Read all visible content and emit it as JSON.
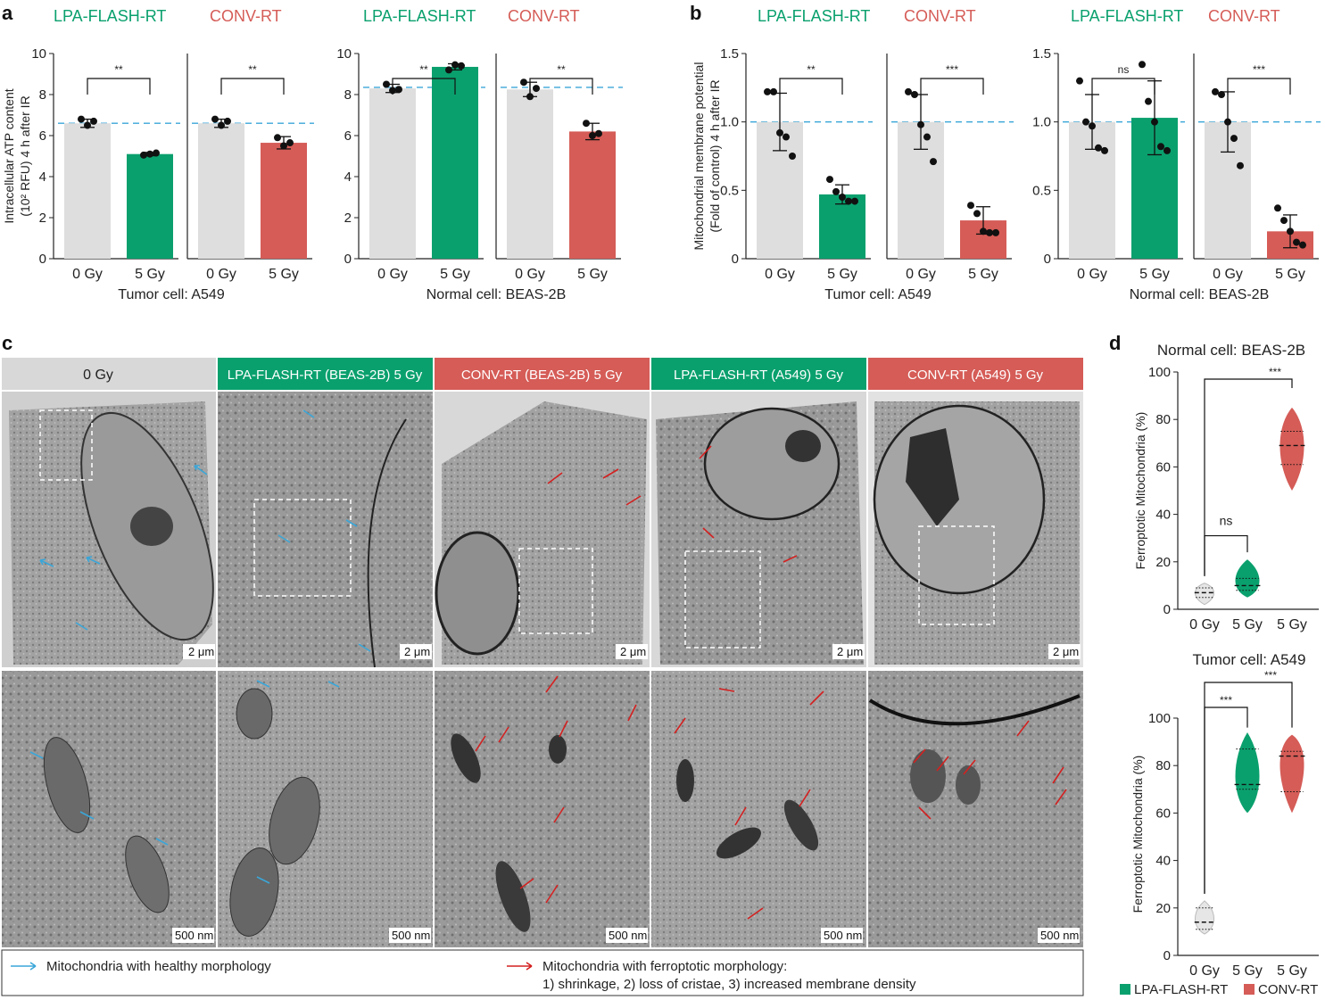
{
  "panels": {
    "a_label": "a",
    "b_label": "b",
    "c_label": "c",
    "d_label": "d"
  },
  "legend_conditions": {
    "flash": "LPA-FLASH-RT",
    "conv": "CONV-RT"
  },
  "colors": {
    "flash": "#0aa06e",
    "conv": "#d55c57",
    "control": "#dedede",
    "refline": "#3aa6d8",
    "healthy_arrow": "#3aa6d8",
    "ferro_arrow": "#d42020"
  },
  "panel_a": {
    "ylabel_lines": [
      "Intracellular ATP content",
      "(10² RFU) 4 h after IR"
    ],
    "yticks": [
      "0",
      "2",
      "4",
      "6",
      "8",
      "10"
    ],
    "groups": [
      {
        "name": "Tumor cell: A549",
        "sub": [
          "0 Gy",
          "5 Gy",
          "0 Gy",
          "5 Gy"
        ],
        "sig": [
          "**",
          "**"
        ]
      },
      {
        "name": "Normal cell: BEAS-2B",
        "sub": [
          "0 Gy",
          "5 Gy",
          "0 Gy",
          "5 Gy"
        ],
        "sig": [
          "**",
          "**"
        ]
      }
    ]
  },
  "panel_b": {
    "ylabel_lines": [
      "Mitochondrial membrane potential",
      "(Fold of control) 4 h after IR"
    ],
    "yticks": [
      "0",
      "0.5",
      "1.0",
      "1.5"
    ],
    "groups": [
      {
        "name": "Tumor cell: A549",
        "sub": [
          "0 Gy",
          "5 Gy",
          "0 Gy",
          "5 Gy"
        ],
        "sig": [
          "**",
          "***"
        ]
      },
      {
        "name": "Normal cell: BEAS-2B",
        "sub": [
          "0 Gy",
          "5 Gy",
          "0 Gy",
          "5 Gy"
        ],
        "sig": [
          "ns",
          "***"
        ]
      }
    ]
  },
  "panel_c": {
    "headers": [
      "0 Gy",
      "LPA-FLASH-RT (BEAS-2B) 5 Gy",
      "CONV-RT (BEAS-2B) 5 Gy",
      "LPA-FLASH-RT (A549) 5 Gy",
      "CONV-RT (A549) 5 Gy"
    ],
    "scale_top": "2 μm",
    "scale_bottom": "500 nm",
    "legend_healthy": "Mitochondria with healthy morphology",
    "legend_ferro_1": "Mitochondria with ferroptotic morphology:",
    "legend_ferro_2": "1) shrinkage, 2) loss of cristae, 3) increased membrane density"
  },
  "panel_d": {
    "top_title": "Normal cell: BEAS-2B",
    "bottom_title": "Tumor cell: A549",
    "ylabel": "Ferroptotic Mitochondria (%)",
    "yticks": [
      "0",
      "20",
      "40",
      "60",
      "80",
      "100"
    ],
    "xticks": [
      "0 Gy",
      "5 Gy",
      "5 Gy"
    ],
    "top_sig": [
      "***",
      "ns"
    ],
    "bottom_sig": [
      "***",
      "***"
    ],
    "legend": [
      "LPA-FLASH-RT",
      "CONV-RT"
    ]
  },
  "chart_data": [
    {
      "type": "bar",
      "panel": "a-A549",
      "ylabel": "Intracellular ATP content (10² RFU) 4 h after IR",
      "xlabel": "Tumor cell: A549",
      "ylim": [
        0,
        10
      ],
      "categories": [
        "LPA-FLASH-RT 0 Gy",
        "LPA-FLASH-RT 5 Gy",
        "CONV-RT 0 Gy",
        "CONV-RT 5 Gy"
      ],
      "values": [
        6.6,
        5.1,
        6.6,
        5.65
      ],
      "errors": [
        0.2,
        0.08,
        0.2,
        0.3
      ],
      "points": [
        [
          6.8,
          6.5,
          6.7
        ],
        [
          5.05,
          5.1,
          5.15
        ],
        [
          6.8,
          6.5,
          6.7
        ],
        [
          5.9,
          5.5,
          5.65
        ]
      ],
      "refline": 6.6
    },
    {
      "type": "bar",
      "panel": "a-BEAS-2B",
      "xlabel": "Normal cell: BEAS-2B",
      "ylim": [
        0,
        10
      ],
      "categories": [
        "LPA-FLASH-RT 0 Gy",
        "LPA-FLASH-RT 5 Gy",
        "CONV-RT 0 Gy",
        "CONV-RT 5 Gy"
      ],
      "values": [
        8.3,
        9.35,
        8.25,
        6.2
      ],
      "errors": [
        0.2,
        0.15,
        0.35,
        0.4
      ],
      "points": [
        [
          8.5,
          8.2,
          8.25
        ],
        [
          9.2,
          9.45,
          9.4
        ],
        [
          8.6,
          7.9,
          8.3
        ],
        [
          6.6,
          6.0,
          6.1
        ]
      ],
      "refline": 8.35
    },
    {
      "type": "bar",
      "panel": "b-A549",
      "ylabel": "Mitochondrial membrane potential (Fold of control) 4 h after IR",
      "xlabel": "Tumor cell: A549",
      "ylim": [
        0,
        1.5
      ],
      "categories": [
        "LPA-FLASH-RT 0 Gy",
        "LPA-FLASH-RT 5 Gy",
        "CONV-RT 0 Gy",
        "CONV-RT 5 Gy"
      ],
      "values": [
        1.0,
        0.47,
        1.0,
        0.28
      ],
      "errors": [
        0.21,
        0.07,
        0.2,
        0.1
      ],
      "points": [
        [
          1.22,
          1.22,
          0.92,
          0.89,
          0.75
        ],
        [
          0.58,
          0.49,
          0.45,
          0.42,
          0.42
        ],
        [
          1.22,
          1.2,
          0.98,
          0.89,
          0.71
        ],
        [
          0.39,
          0.33,
          0.2,
          0.19,
          0.19
        ]
      ],
      "refline": 1.0
    },
    {
      "type": "bar",
      "panel": "b-BEAS-2B",
      "xlabel": "Normal cell: BEAS-2B",
      "ylim": [
        0,
        1.5
      ],
      "categories": [
        "LPA-FLASH-RT 0 Gy",
        "LPA-FLASH-RT 5 Gy",
        "CONV-RT 0 Gy",
        "CONV-RT 5 Gy"
      ],
      "values": [
        1.0,
        1.03,
        1.0,
        0.2
      ],
      "errors": [
        0.2,
        0.27,
        0.22,
        0.12
      ],
      "points": [
        [
          1.3,
          1.0,
          0.97,
          0.81,
          0.79
        ],
        [
          1.42,
          1.15,
          1.0,
          0.82,
          0.79
        ],
        [
          1.22,
          1.2,
          1.0,
          0.88,
          0.68
        ],
        [
          0.37,
          0.28,
          0.2,
          0.12,
          0.1
        ]
      ],
      "refline": 1.0
    },
    {
      "type": "violin",
      "panel": "d-BEAS-2B",
      "title": "Normal cell: BEAS-2B",
      "ylabel": "Ferroptotic Mitochondria (%)",
      "ylim": [
        0,
        100
      ],
      "categories": [
        "0 Gy",
        "5 Gy (LPA-FLASH-RT)",
        "5 Gy (CONV-RT)"
      ],
      "medians": [
        7,
        10,
        69
      ],
      "quartiles": [
        [
          5,
          9
        ],
        [
          8,
          13
        ],
        [
          61,
          75
        ]
      ],
      "range": [
        [
          2,
          11
        ],
        [
          5,
          21
        ],
        [
          50,
          85
        ]
      ]
    },
    {
      "type": "violin",
      "panel": "d-A549",
      "title": "Tumor cell: A549",
      "ylabel": "Ferroptotic Mitochondria (%)",
      "ylim": [
        0,
        100
      ],
      "categories": [
        "0 Gy",
        "5 Gy (LPA-FLASH-RT)",
        "5 Gy (CONV-RT)"
      ],
      "medians": [
        14,
        72,
        84
      ],
      "quartiles": [
        [
          11,
          20
        ],
        [
          70,
          87
        ],
        [
          69,
          86
        ]
      ],
      "range": [
        [
          9,
          23
        ],
        [
          60,
          94
        ],
        [
          60,
          93
        ]
      ]
    }
  ]
}
